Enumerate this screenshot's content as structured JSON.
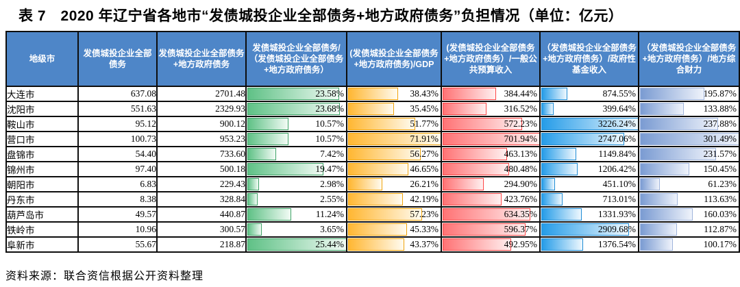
{
  "title": "表 7　2020 年辽宁省各地市“发债城投企业全部债务+地方政府债务”负担情况（单位：亿元）",
  "source_note": "资料来源：联合资信根据公开资料整理",
  "colors": {
    "header_bg": "#4E86C8",
    "header_text": "#FFFFFF",
    "grid_border": "#0D0D0D",
    "bars": {
      "green": {
        "border": "#3EA266",
        "start": "#5FC186",
        "end": "#F2FBF5"
      },
      "yellow": {
        "border": "#F0A30A",
        "start": "#FFB733",
        "end": "#FFFBF0"
      },
      "red": {
        "border": "#FF4545",
        "start": "#FF7375",
        "end": "#FFF0F0"
      },
      "blue": {
        "border": "#1D8BD4",
        "start": "#259CE8",
        "end": "#EFF8FE"
      },
      "steel": {
        "border": "#9FB4DB",
        "start": "#7A9BD2",
        "end": "#EFF3FB"
      }
    }
  },
  "table": {
    "columns": [
      {
        "key": "city",
        "label": "地级市",
        "type": "text"
      },
      {
        "key": "debt",
        "label": "发债城投企业全部债务",
        "type": "number"
      },
      {
        "key": "combined",
        "label": "发债城投企业全部债务+地方政府债务",
        "type": "number"
      },
      {
        "key": "ratio_share",
        "label": "发债城投企业全部债务/（发债城投企业全部债务+地方政府债务）",
        "type": "bar",
        "color": "green"
      },
      {
        "key": "ratio_gdp",
        "label": "(发债城投企业全部债务+地方政府债务)/GDP",
        "type": "bar",
        "color": "yellow"
      },
      {
        "key": "ratio_budget",
        "label": "(发债城投企业全部债务+地方政府债务）/一般公共预算收入",
        "type": "bar",
        "color": "red"
      },
      {
        "key": "ratio_fund",
        "label": "（发债城投企业全部债务+地方政府债务）/政府性基金收入",
        "type": "bar",
        "color": "blue"
      },
      {
        "key": "ratio_fiscal",
        "label": "（发债城投企业全部债务+地方政府债务）/地方综合财力",
        "type": "bar",
        "color": "steel"
      }
    ],
    "rows": [
      {
        "city": "大连市",
        "debt": "637.08",
        "combined": "2701.48",
        "ratio_share": "23.58%",
        "ratio_gdp": "38.43%",
        "ratio_budget": "384.44%",
        "ratio_fund": "874.55%",
        "ratio_fiscal": "195.87%"
      },
      {
        "city": "沈阳市",
        "debt": "551.63",
        "combined": "2329.93",
        "ratio_share": "23.68%",
        "ratio_gdp": "35.45%",
        "ratio_budget": "316.52%",
        "ratio_fund": "399.64%",
        "ratio_fiscal": "133.88%"
      },
      {
        "city": "鞍山市",
        "debt": "95.12",
        "combined": "900.12",
        "ratio_share": "10.57%",
        "ratio_gdp": "51.77%",
        "ratio_budget": "572.23%",
        "ratio_fund": "3226.24%",
        "ratio_fiscal": "237.88%"
      },
      {
        "city": "营口市",
        "debt": "100.73",
        "combined": "953.23",
        "ratio_share": "10.57%",
        "ratio_gdp": "71.91%",
        "ratio_budget": "701.94%",
        "ratio_fund": "2747.06%",
        "ratio_fiscal": "301.49%"
      },
      {
        "city": "盘锦市",
        "debt": "54.40",
        "combined": "733.60",
        "ratio_share": "7.42%",
        "ratio_gdp": "56.27%",
        "ratio_budget": "463.13%",
        "ratio_fund": "1149.84%",
        "ratio_fiscal": "231.57%"
      },
      {
        "city": "锦州市",
        "debt": "97.40",
        "combined": "500.18",
        "ratio_share": "19.47%",
        "ratio_gdp": "46.65%",
        "ratio_budget": "480.48%",
        "ratio_fund": "1206.42%",
        "ratio_fiscal": "150.45%"
      },
      {
        "city": "朝阳市",
        "debt": "6.83",
        "combined": "229.43",
        "ratio_share": "2.98%",
        "ratio_gdp": "26.21%",
        "ratio_budget": "294.90%",
        "ratio_fund": "451.10%",
        "ratio_fiscal": "61.23%"
      },
      {
        "city": "丹东市",
        "debt": "8.38",
        "combined": "328.84",
        "ratio_share": "2.55%",
        "ratio_gdp": "42.19%",
        "ratio_budget": "423.76%",
        "ratio_fund": "713.01%",
        "ratio_fiscal": "113.63%"
      },
      {
        "city": "葫芦岛市",
        "debt": "49.57",
        "combined": "440.87",
        "ratio_share": "11.24%",
        "ratio_gdp": "57.23%",
        "ratio_budget": "634.35%",
        "ratio_fund": "1331.93%",
        "ratio_fiscal": "160.03%"
      },
      {
        "city": "铁岭市",
        "debt": "10.96",
        "combined": "300.57",
        "ratio_share": "3.65%",
        "ratio_gdp": "45.33%",
        "ratio_budget": "596.37%",
        "ratio_fund": "2909.68%",
        "ratio_fiscal": "112.87%"
      },
      {
        "city": "阜新市",
        "debt": "55.67",
        "combined": "218.87",
        "ratio_share": "25.44%",
        "ratio_gdp": "43.37%",
        "ratio_budget": "492.95%",
        "ratio_fund": "1376.54%",
        "ratio_fiscal": "100.17%"
      }
    ]
  }
}
